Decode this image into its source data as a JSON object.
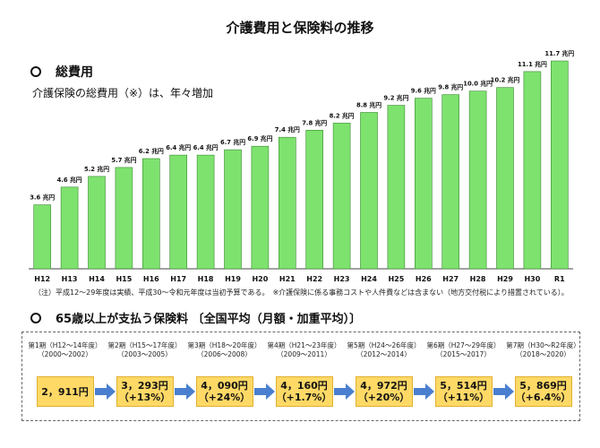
{
  "page_title": "介護費用と保険料の推移",
  "section1": {
    "heading": "総費用",
    "subheading": "介護保険の総費用（※）は、年々増加"
  },
  "note": "（注）平成12〜29年度は実績、平成30〜令和元年度は当初予算である。　※介護保険に係る事務コストや人件費などは含まない（地方交付税により措置されている）。",
  "section2": {
    "heading": "65歳以上が支払う保険料 〔全国平均（月額・加重平均）〕"
  },
  "colors": {
    "bar_fill": "#7ee26f",
    "bar_stroke": "#3a8a30",
    "premium_fill": "#ffd966",
    "arrow": "#4a7fd0"
  },
  "chart_data": {
    "type": "bar",
    "title": "介護費用と保険料の推移",
    "categories": [
      "H12",
      "H13",
      "H14",
      "H15",
      "H16",
      "H17",
      "H18",
      "H19",
      "H20",
      "H21",
      "H22",
      "H23",
      "H24",
      "H25",
      "H26",
      "H27",
      "H28",
      "H29",
      "H30",
      "R1"
    ],
    "values": [
      3.6,
      4.6,
      5.2,
      5.7,
      6.2,
      6.4,
      6.4,
      6.7,
      6.9,
      7.4,
      7.8,
      8.2,
      8.8,
      9.2,
      9.6,
      9.8,
      10.0,
      10.2,
      11.1,
      11.7
    ],
    "value_labels": [
      "3.6 兆円",
      "4.6 兆円",
      "5.2 兆円",
      "5.7 兆円",
      "6.2 兆円",
      "6.4 兆円",
      "6.4 兆円",
      "6.7 兆円",
      "6.9 兆円",
      "7.4 兆円",
      "7.8 兆円",
      "8.2 兆円",
      "8.8 兆円",
      "9.2 兆円",
      "9.6 兆円",
      "9.8 兆円",
      "10.0 兆円",
      "10.2 兆円",
      "11.1 兆円",
      "11.7 兆円"
    ],
    "unit": "兆円",
    "ylim": [
      0,
      12
    ],
    "grid": false,
    "legend": "none"
  },
  "premiums": [
    {
      "period": "第1期（H12〜14年度）",
      "years": "（2000〜2002）",
      "amount": "2，911円",
      "change": ""
    },
    {
      "period": "第2期（H15〜17年度）",
      "years": "（2003〜2005）",
      "amount": "3，293円",
      "change": "（+13%）"
    },
    {
      "period": "第3期（H18〜20年度）",
      "years": "（2006〜2008）",
      "amount": "4，090円",
      "change": "（+24%）"
    },
    {
      "period": "第4期（H21〜23年度）",
      "years": "（2009〜2011）",
      "amount": "4，160円",
      "change": "（+1.7%）"
    },
    {
      "period": "第5期（H24〜26年度）",
      "years": "（2012〜2014）",
      "amount": "4，972円",
      "change": "（+20%）"
    },
    {
      "period": "第6期（H27〜29年度）",
      "years": "（2015〜2017）",
      "amount": "5，514円",
      "change": "（+11%）"
    },
    {
      "period": "第7期（H30〜R2年度）",
      "years": "（2018〜2020）",
      "amount": "5，869円",
      "change": "（+6.4%）"
    }
  ]
}
